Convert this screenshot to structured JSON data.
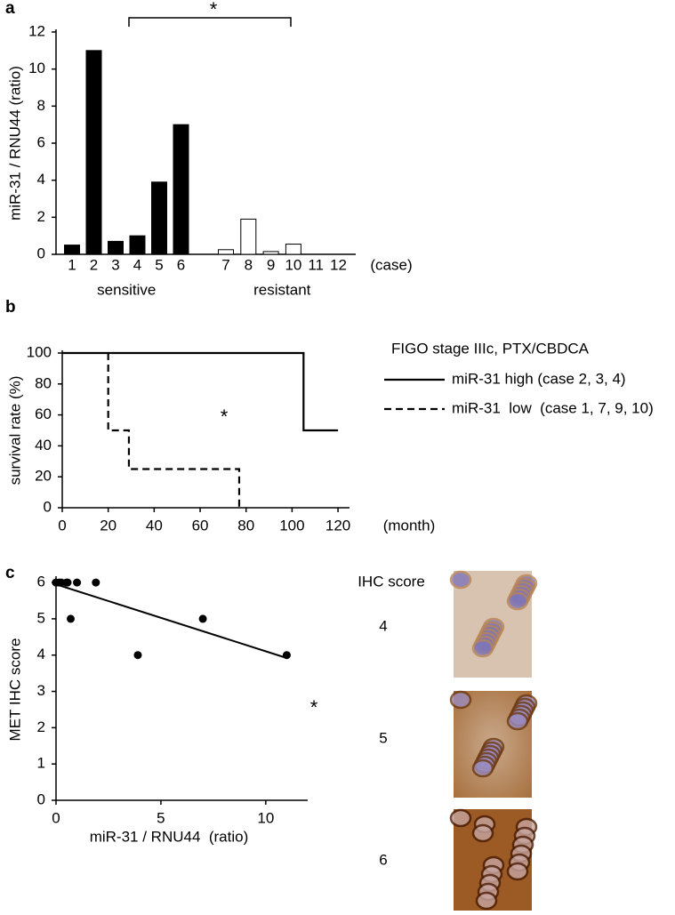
{
  "chart_data": [
    {
      "type": "bar",
      "panel_label": "a",
      "ylabel": "miR-31 / RNU44  (ratio)",
      "xlabel": "(case)",
      "categories": [
        "1",
        "2",
        "3",
        "4",
        "5",
        "6",
        "7",
        "8",
        "9",
        "10",
        "11",
        "12"
      ],
      "series": [
        {
          "name": "sensitive",
          "color": "#000000",
          "values": [
            0.5,
            11,
            0.7,
            1.0,
            3.9,
            7.0,
            null,
            null,
            null,
            null,
            null,
            null
          ]
        },
        {
          "name": "resistant",
          "color": "#ffffff",
          "values": [
            null,
            null,
            null,
            null,
            null,
            null,
            0.25,
            1.9,
            0.15,
            0.55,
            0,
            0
          ]
        }
      ],
      "ylim": [
        0,
        12
      ],
      "yticks": [
        0,
        2,
        4,
        6,
        8,
        10,
        12
      ],
      "annotation": "*"
    },
    {
      "type": "line",
      "panel_label": "b",
      "ylabel": "survival rate (%)",
      "xlabel": "(month)",
      "legend_title": "FIGO stage IIIc, PTX/CBDCA",
      "series": [
        {
          "name": "miR-31 high (case 2, 3, 4)",
          "color": "#000000",
          "dashed": false,
          "x": [
            0,
            105,
            105,
            120
          ],
          "values": [
            100,
            100,
            50,
            50
          ]
        },
        {
          "name": "miR-31  low  (case 1, 7, 9, 10)",
          "color": "#000000",
          "dashed": true,
          "x": [
            20,
            20,
            29,
            29,
            77,
            77
          ],
          "values": [
            100,
            50,
            50,
            25,
            25,
            0
          ]
        }
      ],
      "xlim": [
        0,
        125
      ],
      "xticks": [
        0,
        20,
        40,
        60,
        80,
        100,
        120
      ],
      "ylim": [
        0,
        100
      ],
      "yticks": [
        0,
        20,
        40,
        60,
        80,
        100
      ],
      "annotation": "*"
    },
    {
      "type": "scatter",
      "panel_label": "c",
      "ylabel": "MET IHC score",
      "xlabel": "miR-31 / RNU44  (ratio)",
      "x": [
        0,
        0,
        0.15,
        0.25,
        0.5,
        0.55,
        0.7,
        1.0,
        1.9,
        3.9,
        7.0,
        11
      ],
      "values": [
        6,
        6,
        6,
        6,
        6,
        6,
        5,
        6,
        6,
        4,
        5,
        4
      ],
      "color": "#000000",
      "fit_line": {
        "x": [
          0,
          11
        ],
        "values": [
          5.95,
          3.92
        ]
      },
      "xlim": [
        0,
        12
      ],
      "xticks": [
        0,
        5,
        10
      ],
      "ylim": [
        0,
        6.1
      ],
      "yticks": [
        0,
        1,
        2,
        3,
        4,
        5,
        6
      ],
      "annotation": "*"
    }
  ],
  "ihc_panel": {
    "title": "IHC score",
    "scores": [
      "4",
      "5",
      "6"
    ]
  }
}
